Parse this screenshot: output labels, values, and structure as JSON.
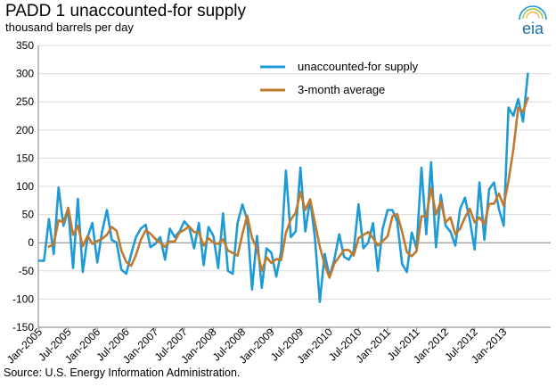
{
  "header": {
    "title": "PADD 1 unaccounted-for supply",
    "subtitle": "thousand barrels per day"
  },
  "footer": {
    "source": "Source: U.S. Energy Information Administration."
  },
  "logo": {
    "text": "eia",
    "icon": "eia-logo-icon"
  },
  "colors": {
    "supply": "#1E9AD6",
    "average": "#C07A2E",
    "grid": "#D9D9D9",
    "axis": "#808080"
  },
  "chart_data": {
    "type": "line",
    "title": "PADD 1 unaccounted-for supply",
    "ylabel": "thousand barrels per day",
    "ylim": [
      -150,
      350
    ],
    "yticks": [
      350,
      300,
      250,
      200,
      150,
      100,
      50,
      0,
      -50,
      -100,
      -150
    ],
    "x_start": "Jan-2005",
    "x_tick_labels": [
      "Jan-2005",
      "Jul-2005",
      "Jan-2006",
      "Jul-2006",
      "Jan-2007",
      "Jul-2007",
      "Jan-2008",
      "Jul-2008",
      "Jan-2009",
      "Jul-2009",
      "Jan-2010",
      "Jul-2010",
      "Jan-2011",
      "Jul-2011",
      "Jan-2012",
      "Jul-2012",
      "Jan-2013"
    ],
    "legend": [
      "unaccounted-for supply",
      "3-month average"
    ],
    "legend_position": "top-right",
    "series": [
      {
        "name": "unaccounted-for supply",
        "values": [
          -32,
          -32,
          42,
          -20,
          98,
          30,
          58,
          -45,
          78,
          -52,
          10,
          35,
          -35,
          20,
          58,
          5,
          0,
          -48,
          -55,
          -20,
          10,
          25,
          32,
          -8,
          -2,
          10,
          -30,
          25,
          10,
          20,
          38,
          28,
          -10,
          35,
          -40,
          28,
          12,
          -45,
          52,
          -50,
          -55,
          35,
          68,
          40,
          -83,
          12,
          -80,
          -10,
          -18,
          -60,
          -15,
          128,
          10,
          20,
          133,
          20,
          77,
          8,
          -105,
          -20,
          -60,
          -30,
          15,
          -25,
          -30,
          -15,
          68,
          -10,
          0,
          35,
          -50,
          25,
          58,
          58,
          38,
          -38,
          -52,
          18,
          -10,
          133,
          15,
          143,
          -8,
          85,
          30,
          20,
          -5,
          60,
          80,
          40,
          -12,
          107,
          5,
          95,
          107,
          60,
          30,
          240,
          225,
          255,
          215,
          300
        ],
        "color": "#1E9AD6"
      },
      {
        "name": "3-month average",
        "values": [
          null,
          null,
          -7,
          -3,
          40,
          36,
          62,
          14,
          30,
          -6,
          12,
          -2,
          3,
          7,
          14,
          28,
          21,
          -14,
          -34,
          -41,
          -22,
          5,
          22,
          16,
          7,
          0,
          -7,
          2,
          2,
          18,
          23,
          29,
          19,
          18,
          -5,
          8,
          0,
          -2,
          6,
          -14,
          -18,
          -23,
          16,
          48,
          8,
          -10,
          -50,
          -26,
          -36,
          -29,
          -31,
          18,
          41,
          53,
          90,
          58,
          77,
          35,
          -7,
          -39,
          -62,
          -37,
          -25,
          -13,
          -13,
          -23,
          8,
          14,
          19,
          8,
          -5,
          3,
          11,
          47,
          51,
          19,
          -17,
          -24,
          -15,
          47,
          46,
          97,
          50,
          73,
          36,
          45,
          15,
          25,
          45,
          60,
          36,
          45,
          33,
          69,
          69,
          87,
          66,
          110,
          165,
          240,
          232,
          257
        ],
        "color": "#C07A2E"
      }
    ]
  }
}
